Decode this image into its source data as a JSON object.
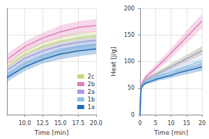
{
  "chart_data": [
    {
      "type": "line",
      "xlabel": "Time [min]",
      "x": [
        7.5,
        10,
        12.5,
        15,
        17.5,
        20
      ],
      "series": [
        {
          "name": "2c",
          "color": "#c7d97a",
          "values": [
            45,
            57,
            64,
            69,
            72,
            74
          ],
          "errors": [
            4,
            4,
            5,
            5,
            5,
            5
          ]
        },
        {
          "name": "2b",
          "color": "#e07fb8",
          "values": [
            52,
            64,
            72,
            78,
            82,
            84
          ],
          "errors": [
            5,
            5,
            5,
            6,
            6,
            6
          ]
        },
        {
          "name": "2a",
          "color": "#a99be0",
          "values": [
            42,
            53,
            60,
            65,
            68,
            70
          ],
          "errors": [
            4,
            4,
            5,
            5,
            5,
            5
          ]
        },
        {
          "name": "1b",
          "color": "#8fbfe6",
          "values": [
            38,
            49,
            56,
            61,
            64,
            66
          ],
          "errors": [
            4,
            4,
            4,
            5,
            5,
            5
          ]
        },
        {
          "name": "1a",
          "color": "#1f6bb5",
          "values": [
            35,
            45,
            52,
            57,
            60,
            62
          ],
          "errors": [
            4,
            4,
            4,
            5,
            5,
            5
          ]
        }
      ],
      "xlim": [
        7.5,
        20
      ],
      "xticks": [
        {
          "value": 10,
          "label": "10.0"
        },
        12.5,
        {
          "value": 15,
          "label": "15.0"
        },
        17.5,
        {
          "value": 20,
          "label": "20.0"
        }
      ],
      "ylim": [
        0,
        100
      ],
      "yticks": [
        0,
        25,
        50,
        75,
        100
      ],
      "grid": true,
      "legend": "lower right",
      "tick_labels": "x"
    },
    {
      "type": "line",
      "xlabel": "Time [min]",
      "ylabel": "Heat [J/g]",
      "x": [
        0,
        0.1,
        0.3,
        0.5,
        1,
        2,
        4,
        6,
        8,
        10,
        12,
        14,
        16,
        18,
        20
      ],
      "series": [
        {
          "name": "2c",
          "color": "#c7d97a",
          "values": [
            0,
            33,
            51,
            56,
            61,
            67,
            73,
            79,
            85,
            91,
            97,
            103,
            109,
            115,
            121
          ],
          "errors": [
            0,
            2,
            3,
            3,
            3,
            4,
            4,
            5,
            5,
            6,
            6,
            7,
            7,
            8,
            8
          ]
        },
        {
          "name": "2b",
          "color": "#e07fb8",
          "values": [
            0,
            34,
            53,
            58,
            64,
            72,
            82,
            93,
            104,
            116,
            128,
            140,
            152,
            164,
            176
          ],
          "errors": [
            0,
            2,
            3,
            3,
            4,
            5,
            6,
            7,
            8,
            9,
            10,
            11,
            12,
            13,
            13
          ]
        },
        {
          "name": "2a",
          "color": "#a99be0",
          "values": [
            0,
            32,
            50,
            55,
            60,
            66,
            72,
            78,
            84,
            90,
            96,
            102,
            108,
            114,
            120
          ],
          "errors": [
            0,
            2,
            3,
            3,
            3,
            4,
            4,
            5,
            5,
            6,
            6,
            7,
            7,
            8,
            8
          ]
        },
        {
          "name": "1b",
          "color": "#8fbfe6",
          "values": [
            0,
            31,
            49,
            53,
            58,
            63,
            68,
            73,
            77,
            81,
            85,
            89,
            93,
            97,
            101
          ],
          "errors": [
            0,
            2,
            3,
            3,
            3,
            3,
            4,
            4,
            5,
            5,
            6,
            6,
            7,
            7,
            8
          ]
        },
        {
          "name": "1a",
          "color": "#1f6bb5",
          "values": [
            0,
            30,
            48,
            52,
            56,
            60,
            64,
            68,
            71,
            74,
            78,
            81,
            84,
            87,
            90
          ],
          "errors": [
            0,
            2,
            3,
            3,
            3,
            3,
            4,
            4,
            5,
            5,
            6,
            6,
            7,
            7,
            8
          ]
        }
      ],
      "xlim": [
        0,
        20
      ],
      "xticks": [
        0,
        5,
        10,
        15,
        20
      ],
      "ylim": [
        0,
        200
      ],
      "yticks": [
        0,
        50,
        100,
        150,
        200
      ],
      "grid": true
    }
  ]
}
